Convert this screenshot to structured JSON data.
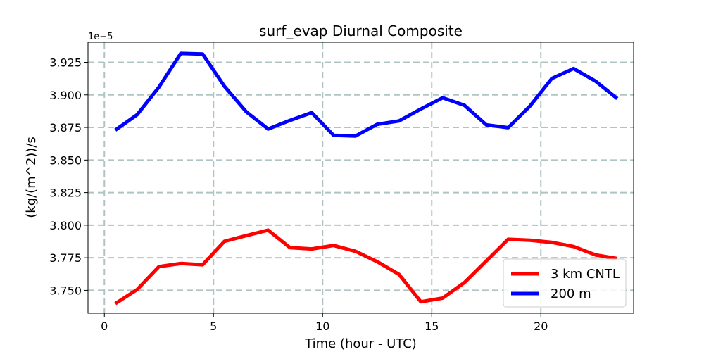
{
  "chart_data": {
    "type": "line",
    "title": "surf_evap Diurnal Composite",
    "xlabel": "Time (hour - UTC)",
    "ylabel": "(kg/(m^2))/s",
    "offset_text": "1e−5",
    "xlim": [
      -0.75,
      24.25
    ],
    "ylim": [
      3.7324,
      3.9404
    ],
    "x_ticks": [
      0,
      5,
      10,
      15,
      20
    ],
    "x_tick_labels": [
      "0",
      "5",
      "10",
      "15",
      "20"
    ],
    "y_ticks": [
      3.75,
      3.775,
      3.8,
      3.825,
      3.85,
      3.875,
      3.9,
      3.925
    ],
    "y_tick_labels": [
      "3.750",
      "3.775",
      "3.800",
      "3.825",
      "3.850",
      "3.875",
      "3.900",
      "3.925"
    ],
    "grid": true,
    "legend_position": "lower-right",
    "x": [
      0.5,
      1.5,
      2.5,
      3.5,
      4.5,
      5.5,
      6.5,
      7.5,
      8.5,
      9.5,
      10.5,
      11.5,
      12.5,
      13.5,
      14.5,
      15.5,
      16.5,
      17.5,
      18.5,
      19.5,
      20.5,
      21.5,
      22.5,
      23.5
    ],
    "series": [
      {
        "name": "3 km CNTL",
        "color": "#ff0000",
        "values": [
          3.7398,
          3.7506,
          3.7682,
          3.7706,
          3.7696,
          3.7876,
          3.792,
          3.7962,
          3.7828,
          3.7818,
          3.7844,
          3.78,
          3.772,
          3.7622,
          3.7412,
          3.744,
          3.756,
          3.7726,
          3.7892,
          3.7884,
          3.7868,
          3.7836,
          3.7772,
          3.7744
        ]
      },
      {
        "name": "200 m",
        "color": "#0000ff",
        "values": [
          3.873,
          3.8848,
          3.906,
          3.9318,
          3.9314,
          3.9066,
          3.887,
          3.8738,
          3.8804,
          3.8864,
          3.869,
          3.8684,
          3.8774,
          3.88,
          3.8892,
          3.8978,
          3.892,
          3.877,
          3.8748,
          3.8914,
          3.9126,
          3.9202,
          3.9106,
          3.8972
        ]
      }
    ]
  }
}
